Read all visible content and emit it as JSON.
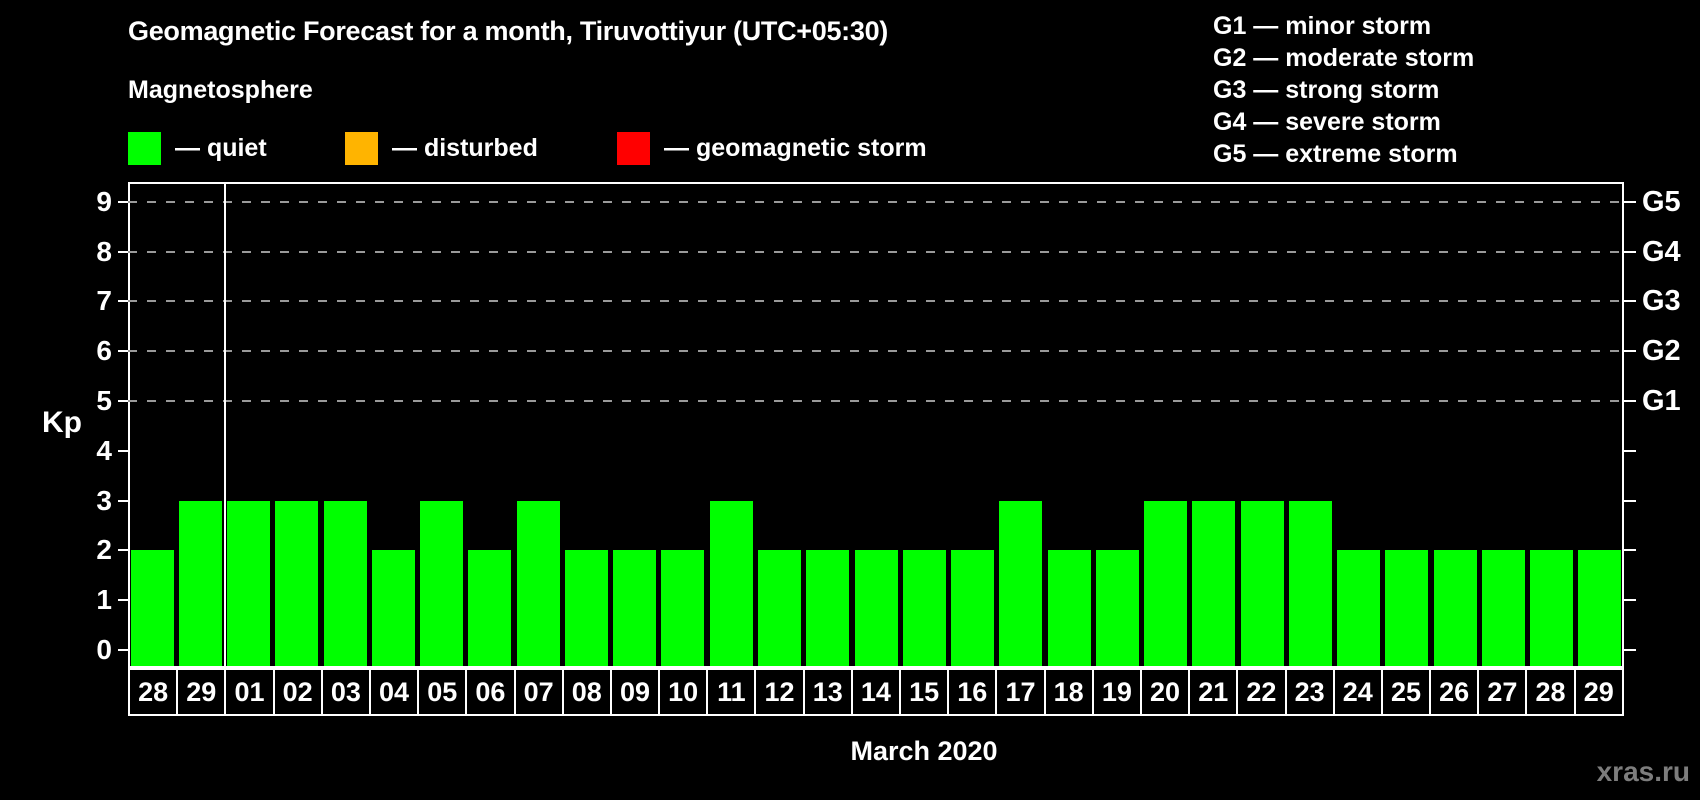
{
  "title": "Geomagnetic Forecast for a month, Tiruvottiyur (UTC+05:30)",
  "subtitle": "Magnetosphere",
  "legend": {
    "items": [
      {
        "name": "quiet",
        "label": "— quiet",
        "color": "#00ff00"
      },
      {
        "name": "disturbed",
        "label": "— disturbed",
        "color": "#ffb400"
      },
      {
        "name": "geomagnetic-storm",
        "label": "— geomagnetic storm",
        "color": "#ff0000"
      }
    ]
  },
  "storm_scale": {
    "items": [
      {
        "label": "G1 — minor storm"
      },
      {
        "label": "G2 — moderate storm"
      },
      {
        "label": "G3 — strong storm"
      },
      {
        "label": "G4 — severe storm"
      },
      {
        "label": "G5 — extreme storm"
      }
    ]
  },
  "chart_data": {
    "type": "bar",
    "title": "Geomagnetic Forecast for a month, Tiruvottiyur (UTC+05:30)",
    "ylabel": "Kp",
    "xlabel": "March 2020",
    "ylim": [
      0,
      9.5
    ],
    "yticks": [
      0,
      1,
      2,
      3,
      4,
      5,
      6,
      7,
      8,
      9
    ],
    "grid_levels": [
      5,
      6,
      7,
      8,
      9
    ],
    "grid_on": true,
    "right_axis": [
      {
        "kp": 5,
        "label": "G1"
      },
      {
        "kp": 6,
        "label": "G2"
      },
      {
        "kp": 7,
        "label": "G3"
      },
      {
        "kp": 8,
        "label": "G4"
      },
      {
        "kp": 9,
        "label": "G5"
      }
    ],
    "categories": [
      "28",
      "29",
      "01",
      "02",
      "03",
      "04",
      "05",
      "06",
      "07",
      "08",
      "09",
      "10",
      "11",
      "12",
      "13",
      "14",
      "15",
      "16",
      "17",
      "18",
      "19",
      "20",
      "21",
      "22",
      "23",
      "24",
      "25",
      "26",
      "27",
      "28",
      "29"
    ],
    "values": [
      2,
      3,
      3,
      3,
      3,
      2,
      3,
      2,
      3,
      2,
      2,
      2,
      3,
      2,
      2,
      2,
      2,
      2,
      3,
      2,
      2,
      3,
      3,
      3,
      3,
      2,
      2,
      2,
      2,
      2,
      2
    ],
    "month_separator_after_index": 1,
    "bar_color": "#00ff00",
    "background_color": "#000000",
    "legend_position": "top"
  },
  "watermark": "xras.ru"
}
